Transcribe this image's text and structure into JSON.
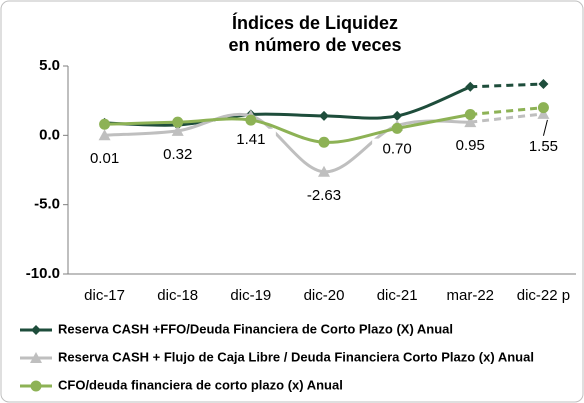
{
  "chart_data": {
    "type": "line",
    "title": "Índices de Liquidez",
    "subtitle": "en número de veces",
    "categories": [
      "dic-17",
      "dic-18",
      "dic-19",
      "dic-20",
      "dic-21",
      "mar-22",
      "dic-22 p"
    ],
    "series": [
      {
        "name": "Reserva CASH +FFO/Deuda Financiera de Corto Plazo (X) Anual",
        "color": "#1e4d3b",
        "marker": "diamond",
        "values": [
          0.9,
          0.75,
          1.5,
          1.4,
          1.4,
          3.5,
          3.7
        ]
      },
      {
        "name": "Reserva CASH + Flujo de Caja Libre / Deuda Financiera Corto Plazo  (x) Anual",
        "color": "#bfbfbf",
        "marker": "triangle",
        "values": [
          0.01,
          0.32,
          1.41,
          -2.63,
          0.7,
          0.95,
          1.55
        ],
        "value_labels": [
          "0.01",
          "0.32",
          "1.41",
          "-2.63",
          "0.70",
          "0.95",
          "1.55"
        ]
      },
      {
        "name": "CFO/deuda financiera de corto plazo (x) Anual",
        "color": "#8db255",
        "marker": "circle",
        "values": [
          0.8,
          0.95,
          1.1,
          -0.5,
          0.5,
          1.5,
          2.0
        ]
      }
    ],
    "dashed_last_segment": true,
    "ylim": [
      -10,
      5
    ],
    "yticks": [
      {
        "value": -10,
        "label": "-10.0"
      },
      {
        "value": -5,
        "label": "-5.0"
      },
      {
        "value": 0,
        "label": "0.0"
      },
      {
        "value": 5,
        "label": "5.0"
      }
    ],
    "legend": "bottom"
  }
}
